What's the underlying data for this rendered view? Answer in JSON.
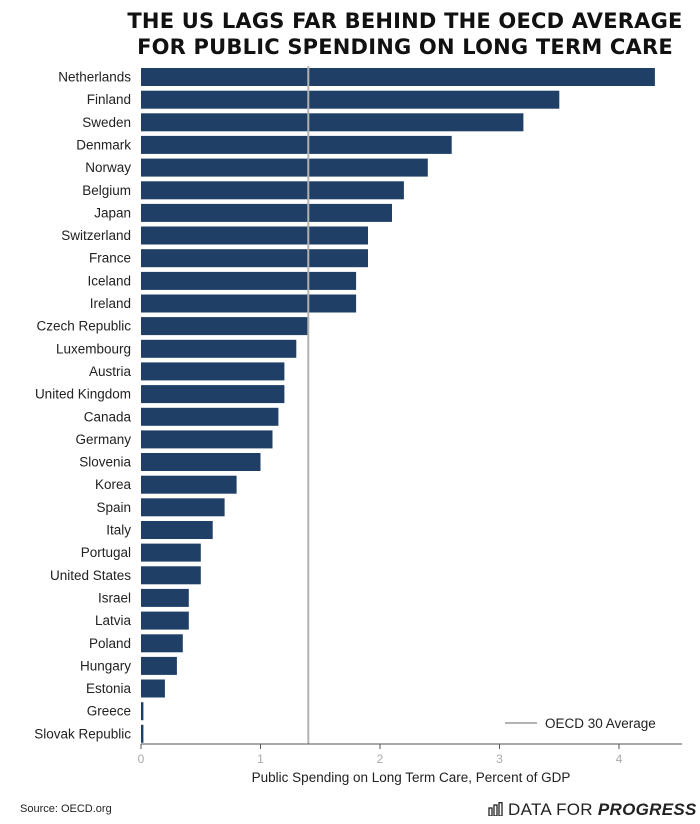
{
  "chart_data": {
    "type": "bar",
    "orientation": "horizontal",
    "title_lines": [
      "THE US LAGS FAR BEHIND THE OECD AVERAGE",
      "FOR PUBLIC SPENDING ON LONG TERM CARE"
    ],
    "xlabel": "Public Spending on Long Term Care, Percent of GDP",
    "ylabel": "",
    "xlim": [
      0,
      4.5
    ],
    "xticks": [
      "0",
      "1",
      "2",
      "3",
      "4"
    ],
    "categories": [
      "Netherlands",
      "Finland",
      "Sweden",
      "Denmark",
      "Norway",
      "Belgium",
      "Japan",
      "Switzerland",
      "France",
      "Iceland",
      "Ireland",
      "Czech Republic",
      "Luxembourg",
      "Austria",
      "United Kingdom",
      "Canada",
      "Germany",
      "Slovenia",
      "Korea",
      "Spain",
      "Italy",
      "Portugal",
      "United States",
      "Israel",
      "Latvia",
      "Poland",
      "Hungary",
      "Estonia",
      "Greece",
      "Slovak Republic"
    ],
    "values": [
      4.3,
      3.5,
      3.2,
      2.6,
      2.4,
      2.2,
      2.1,
      1.9,
      1.9,
      1.8,
      1.8,
      1.4,
      1.3,
      1.2,
      1.2,
      1.15,
      1.1,
      1.0,
      0.8,
      0.7,
      0.6,
      0.5,
      0.5,
      0.4,
      0.4,
      0.35,
      0.3,
      0.2,
      0.02,
      0.02
    ],
    "reference_line": {
      "label": "OECD 30 Average",
      "value": 1.4
    },
    "legend_position": "bottom-right",
    "bar_color": "#1f3f66",
    "reference_color": "#b3b3b3"
  },
  "footer": {
    "source": "Source: OECD.org",
    "brand_regular": "DATA FOR ",
    "brand_bold": "PROGRESS"
  }
}
